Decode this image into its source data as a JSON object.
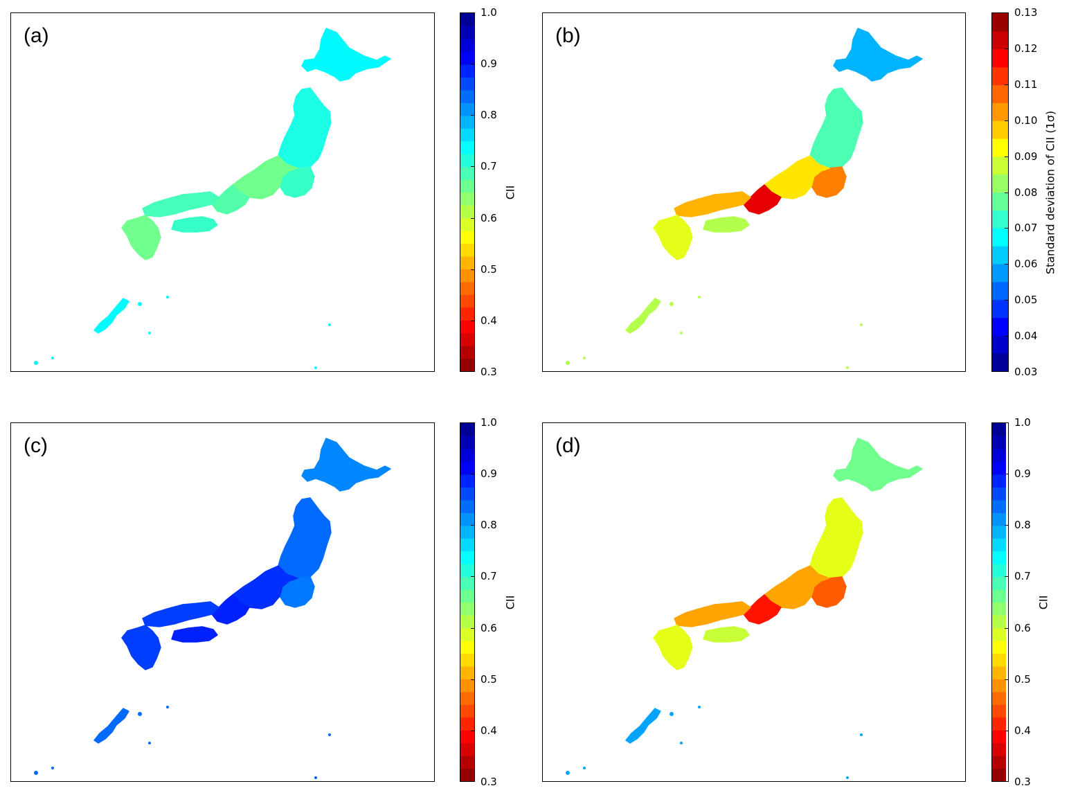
{
  "figure": {
    "panels": [
      {
        "id": "a",
        "label": "(a)",
        "colorbar": "cii",
        "scheme": "a"
      },
      {
        "id": "b",
        "label": "(b)",
        "colorbar": "std",
        "scheme": "b"
      },
      {
        "id": "c",
        "label": "(c)",
        "colorbar": "cii",
        "scheme": "c"
      },
      {
        "id": "d",
        "label": "(d)",
        "colorbar": "cii",
        "scheme": "d"
      }
    ],
    "colorbars": {
      "cii": {
        "title": "CII",
        "min": 0.3,
        "max": 1.0,
        "ticks": [
          "0.3",
          "0.4",
          "0.5",
          "0.6",
          "0.7",
          "0.8",
          "0.9",
          "1.0"
        ],
        "colormap": "jet_r",
        "levels": 28
      },
      "std": {
        "title": "Standard deviation of CII (1σ)",
        "min": 0.03,
        "max": 0.13,
        "ticks": [
          "0.03",
          "0.04",
          "0.05",
          "0.06",
          "0.07",
          "0.08",
          "0.09",
          "0.10",
          "0.11",
          "0.12",
          "0.13"
        ],
        "colormap": "jet",
        "levels": 20
      }
    }
  },
  "chart_data": [
    {
      "type": "heatmap",
      "panel": "(a)",
      "colorbar_label": "CII",
      "range": [
        0.3,
        1.0
      ],
      "dominant_value_range": [
        0.65,
        0.75
      ],
      "regions": {
        "Hokkaido": 0.74,
        "Tohoku": 0.72,
        "Kanto": 0.7,
        "Chubu": 0.66,
        "Kinki": 0.68,
        "Chugoku": 0.69,
        "Shikoku": 0.7,
        "Kyushu": 0.66,
        "Okinawa": 0.74
      }
    },
    {
      "type": "heatmap",
      "panel": "(b)",
      "colorbar_label": "Standard deviation of CII (1σ)",
      "range": [
        0.03,
        0.13
      ],
      "regions": {
        "Hokkaido": 0.06,
        "Tohoku": 0.075,
        "Kanto": 0.105,
        "Chubu": 0.095,
        "Kinki": 0.12,
        "Chugoku": 0.1,
        "Shikoku": 0.085,
        "Kyushu": 0.09,
        "Okinawa": 0.085
      }
    },
    {
      "type": "heatmap",
      "panel": "(c)",
      "colorbar_label": "CII",
      "range": [
        0.3,
        1.0
      ],
      "regions": {
        "Hokkaido": 0.82,
        "Tohoku": 0.84,
        "Kanto": 0.83,
        "Chubu": 0.88,
        "Kinki": 0.89,
        "Chugoku": 0.87,
        "Shikoku": 0.89,
        "Kyushu": 0.87,
        "Okinawa": 0.84
      }
    },
    {
      "type": "heatmap",
      "panel": "(d)",
      "colorbar_label": "CII",
      "range": [
        0.3,
        1.0
      ],
      "regions": {
        "Hokkaido": 0.66,
        "Tohoku": 0.58,
        "Kanto": 0.45,
        "Chubu": 0.5,
        "Kinki": 0.4,
        "Chugoku": 0.5,
        "Shikoku": 0.6,
        "Kyushu": 0.58,
        "Okinawa": 0.8
      }
    }
  ]
}
